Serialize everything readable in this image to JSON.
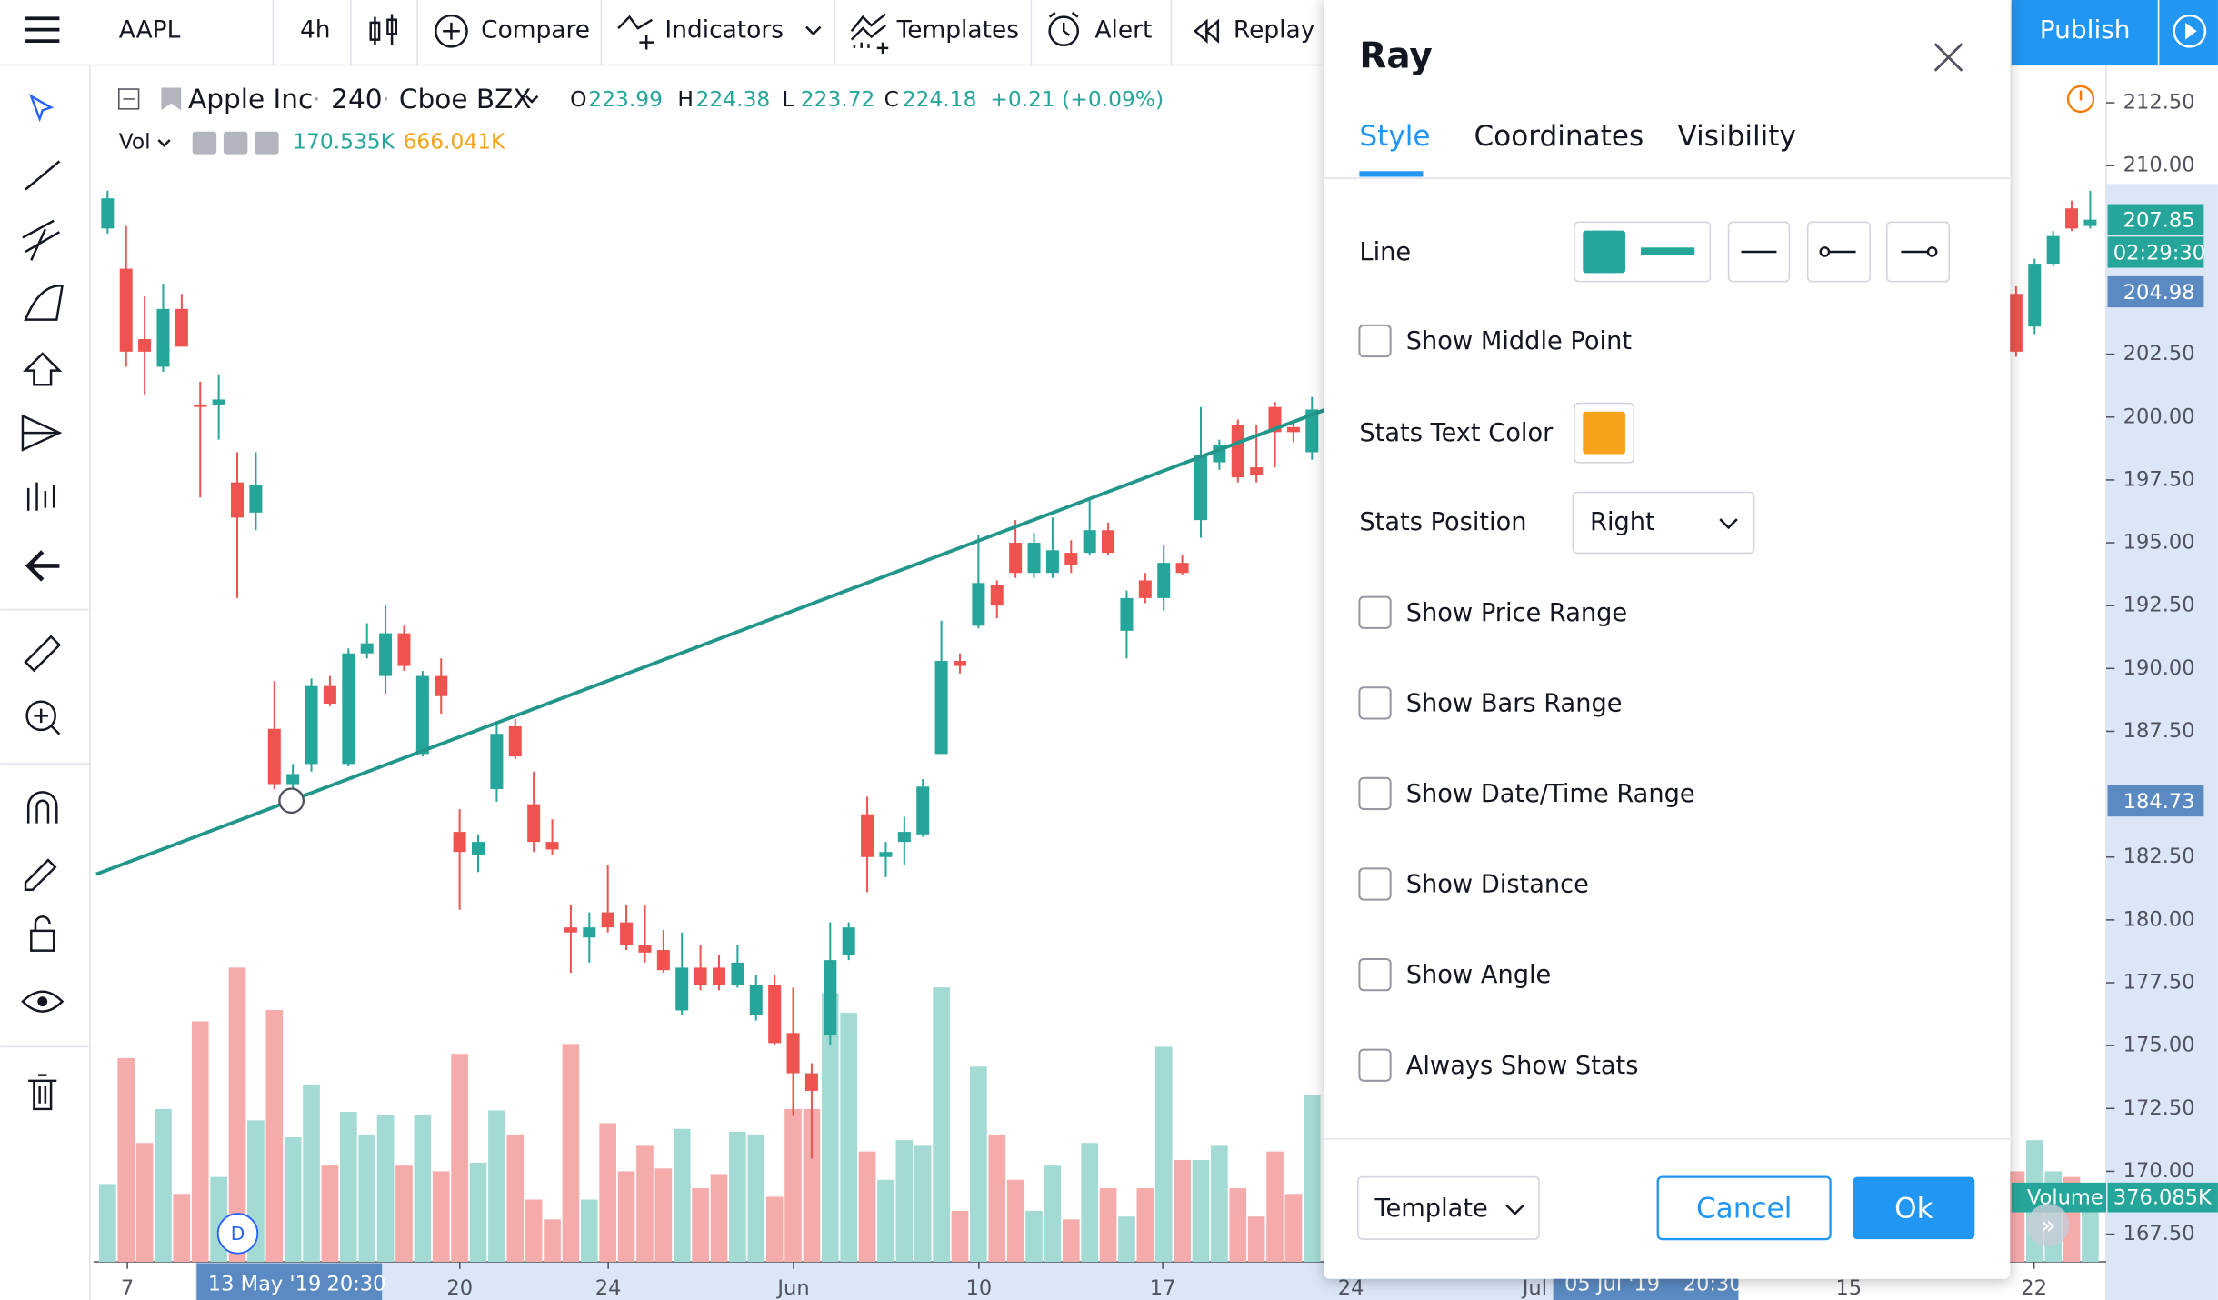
{
  "toolbar": {
    "symbol": "AAPL",
    "interval": "4h",
    "compare": "Compare",
    "indicators": "Indicators",
    "templates": "Templates",
    "alert": "Alert",
    "replay": "Replay",
    "publish": "Publish"
  },
  "legend": {
    "name": "Apple Inc",
    "resolution": "240",
    "exchange": "Cboe BZX",
    "ohlc": [
      {
        "label": "O",
        "value": 223.99
      },
      {
        "label": "H",
        "value": 224.38
      },
      {
        "label": "L",
        "value": 223.72
      },
      {
        "label": "C",
        "value": 224.18
      }
    ],
    "change": "+0.21 (+0.09%)",
    "volume": {
      "label": "Vol",
      "values": [
        "170.535K",
        "666.041K"
      ]
    }
  },
  "chart_data": {
    "type": "candlestick",
    "candles": [
      [
        207.5,
        209.0,
        207.3,
        208.7
      ],
      [
        205.9,
        207.6,
        202.0,
        202.6
      ],
      [
        203.1,
        204.8,
        200.9,
        202.6
      ],
      [
        202.0,
        205.3,
        201.8,
        204.3
      ],
      [
        204.3,
        204.9,
        202.8,
        202.8
      ],
      [
        200.5,
        201.4,
        196.8,
        200.4
      ],
      [
        200.5,
        201.7,
        199.1,
        200.7
      ],
      [
        197.4,
        198.6,
        192.8,
        196.0
      ],
      [
        196.2,
        198.6,
        195.5,
        197.3
      ],
      [
        187.6,
        189.5,
        185.2,
        185.4
      ],
      [
        185.4,
        186.2,
        184.8,
        185.8
      ],
      [
        186.2,
        189.6,
        185.9,
        189.3
      ],
      [
        189.3,
        189.7,
        188.5,
        188.6
      ],
      [
        186.2,
        190.8,
        186.1,
        190.6
      ],
      [
        190.6,
        191.8,
        190.4,
        191.0
      ],
      [
        189.7,
        192.5,
        189.0,
        191.4
      ],
      [
        191.4,
        191.7,
        189.9,
        190.1
      ],
      [
        186.6,
        189.9,
        186.5,
        189.7
      ],
      [
        189.7,
        190.4,
        188.2,
        188.9
      ],
      [
        183.5,
        184.4,
        180.4,
        182.7
      ],
      [
        182.6,
        183.4,
        181.9,
        183.1
      ],
      [
        185.2,
        187.9,
        184.7,
        187.4
      ],
      [
        187.7,
        188.0,
        186.4,
        186.5
      ],
      [
        184.6,
        185.9,
        182.7,
        183.1
      ],
      [
        183.1,
        184.0,
        182.6,
        182.8
      ],
      [
        179.7,
        180.6,
        177.9,
        179.5
      ],
      [
        179.3,
        180.3,
        178.3,
        179.7
      ],
      [
        180.3,
        182.2,
        179.5,
        179.7
      ],
      [
        179.9,
        180.6,
        178.8,
        179.0
      ],
      [
        179.0,
        180.6,
        178.3,
        178.7
      ],
      [
        178.8,
        179.6,
        177.9,
        178.0
      ],
      [
        176.4,
        179.5,
        176.2,
        178.1
      ],
      [
        178.1,
        179.0,
        177.2,
        177.4
      ],
      [
        178.1,
        178.6,
        177.2,
        177.4
      ],
      [
        177.4,
        179.0,
        177.3,
        178.3
      ],
      [
        176.2,
        177.8,
        176.0,
        177.4
      ],
      [
        177.4,
        177.8,
        175.0,
        175.1
      ],
      [
        175.5,
        177.3,
        172.2,
        173.9
      ],
      [
        173.9,
        174.3,
        170.5,
        173.2
      ],
      [
        175.4,
        179.9,
        175.0,
        178.4
      ],
      [
        178.6,
        179.9,
        178.4,
        179.7
      ],
      [
        184.2,
        184.9,
        181.1,
        182.5
      ],
      [
        182.5,
        183.1,
        181.7,
        182.7
      ],
      [
        183.1,
        184.1,
        182.2,
        183.5
      ],
      [
        183.4,
        185.6,
        183.3,
        185.3
      ],
      [
        186.6,
        191.9,
        186.6,
        190.3
      ],
      [
        190.3,
        190.6,
        189.8,
        190.1
      ],
      [
        191.7,
        195.3,
        191.6,
        193.4
      ],
      [
        193.3,
        193.5,
        192.0,
        192.5
      ],
      [
        195.0,
        195.9,
        193.6,
        193.8
      ],
      [
        193.8,
        195.4,
        193.6,
        195.0
      ],
      [
        193.8,
        196.0,
        193.6,
        194.7
      ],
      [
        194.6,
        195.1,
        193.8,
        194.1
      ],
      [
        194.6,
        196.8,
        194.5,
        195.5
      ],
      [
        195.5,
        195.8,
        194.5,
        194.6
      ],
      [
        191.5,
        193.1,
        190.4,
        192.8
      ],
      [
        193.5,
        193.8,
        192.6,
        192.8
      ],
      [
        192.8,
        194.9,
        192.3,
        194.2
      ],
      [
        194.2,
        194.5,
        193.7,
        193.8
      ],
      [
        195.9,
        200.4,
        195.2,
        198.5
      ],
      [
        198.2,
        199.1,
        197.9,
        198.9
      ],
      [
        199.7,
        199.9,
        197.4,
        197.6
      ],
      [
        198.0,
        199.7,
        197.4,
        197.7
      ],
      [
        200.4,
        200.6,
        198.0,
        199.4
      ],
      [
        199.6,
        199.8,
        199.0,
        199.4
      ],
      [
        198.6,
        200.8,
        198.3,
        200.3
      ],
      null,
      null,
      null,
      null,
      null,
      null,
      null,
      null,
      null,
      null,
      null,
      null,
      null,
      null,
      null,
      null,
      null,
      null,
      null,
      null,
      null,
      null,
      null,
      null,
      null,
      null,
      null,
      null,
      null,
      null,
      null,
      null,
      null,
      null,
      null,
      null,
      null,
      [
        204.9,
        205.2,
        202.4,
        202.6
      ],
      [
        203.6,
        206.3,
        203.3,
        206.1
      ],
      [
        206.1,
        207.4,
        206.0,
        207.2
      ],
      [
        208.3,
        208.6,
        207.4,
        207.5
      ],
      [
        207.6,
        209.0,
        207.5,
        207.85
      ]
    ],
    "volumes": [
      165,
      432,
      252,
      324,
      144,
      510,
      180,
      624,
      300,
      534,
      264,
      375,
      204,
      318,
      270,
      312,
      204,
      312,
      192,
      441,
      210,
      321,
      270,
      132,
      90,
      462,
      132,
      294,
      192,
      246,
      198,
      282,
      156,
      186,
      276,
      270,
      138,
      324,
      324,
      570,
      528,
      234,
      174,
      258,
      246,
      582,
      108,
      414,
      270,
      174,
      108,
      204,
      90,
      252,
      156,
      96,
      156,
      456,
      216,
      216,
      246,
      156,
      96,
      234,
      144,
      354,
      null,
      null,
      null,
      null,
      null,
      null,
      null,
      null,
      null,
      null,
      null,
      null,
      null,
      null,
      null,
      null,
      null,
      null,
      null,
      null,
      null,
      null,
      null,
      null,
      null,
      null,
      null,
      null,
      null,
      null,
      null,
      null,
      null,
      null,
      null,
      null,
      null,
      192,
      258,
      192,
      180,
      150
    ],
    "up_color": "#26a69a",
    "down_color": "#ef5350",
    "up_volume_color": "#a3dbd4",
    "down_volume_color": "#f6abab",
    "ylim": [
      166.4,
      214
    ],
    "yticks": [
      {
        "value": 212.5,
        "label": "212.50"
      },
      {
        "value": 210,
        "label": "210.00"
      },
      {
        "value": 202.5,
        "label": "202.50"
      },
      {
        "value": 200,
        "label": "200.00"
      },
      {
        "value": 197.5,
        "label": "197.50"
      },
      {
        "value": 195,
        "label": "195.00"
      },
      {
        "value": 192.5,
        "label": "192.50"
      },
      {
        "value": 190,
        "label": "190.00"
      },
      {
        "value": 187.5,
        "label": "187.50"
      },
      {
        "value": 182.5,
        "label": "182.50"
      },
      {
        "value": 180,
        "label": "180.00"
      },
      {
        "value": 177.5,
        "label": "177.50"
      },
      {
        "value": 175,
        "label": "175.00"
      },
      {
        "value": 172.5,
        "label": "172.50"
      },
      {
        "value": 170,
        "label": "170.00"
      },
      {
        "value": 167.5,
        "label": "167.50"
      }
    ],
    "x_labels": [
      "7",
      "20",
      "24",
      "Jun",
      "10",
      "17",
      "24",
      "Jul",
      "15",
      "22"
    ],
    "price_labels": [
      {
        "value": 207.85,
        "label": "207.85",
        "color": "#26a69a"
      },
      {
        "value": 204.98,
        "label": "204.98",
        "color": "#5b8ac2"
      },
      {
        "value": 184.73,
        "label": "184.73",
        "color": "#5b8ac2"
      }
    ],
    "countdown": "02:29:30",
    "volume_label": {
      "name": "Volume",
      "value": "376.085K"
    },
    "crosshair_dates": [
      {
        "date": "13 May '19",
        "time": "20:30"
      },
      {
        "date": "05 Jul '19",
        "time": "20:30"
      }
    ],
    "session_marker": "D"
  },
  "dialog": {
    "title": "Ray",
    "tabs": [
      "Style",
      "Coordinates",
      "Visibility"
    ],
    "line_label": "Line",
    "line_color": "#26a69a",
    "checkboxes": [
      "Show Middle Point",
      "Show Price Range",
      "Show Bars Range",
      "Show Date/Time Range",
      "Show Distance",
      "Show Angle",
      "Always Show Stats"
    ],
    "stats_text_color_label": "Stats Text Color",
    "stats_text_color": "#f7a21b",
    "stats_position_label": "Stats Position",
    "stats_position": "Right",
    "template": "Template",
    "cancel": "Cancel",
    "ok": "Ok"
  }
}
